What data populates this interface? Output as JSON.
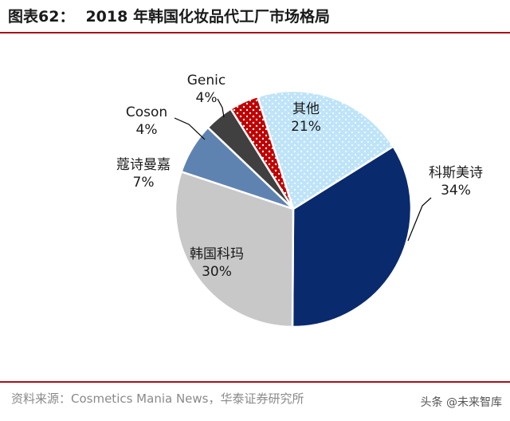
{
  "header": {
    "figure_number": "图表62：",
    "title": "2018 年韩国化妆品代工厂市场格局"
  },
  "footer": {
    "source": "资料来源：Cosmetics Mania News，华泰证券研究所",
    "watermark": "头条 @未来智库"
  },
  "colors": {
    "accent": "#a8101a",
    "cosmax": "#0a2a6e",
    "kolmar": "#c8c8c8",
    "cosmecca": "#5f83b1",
    "coson": "#404040",
    "genic": "#c00000",
    "others": "#bfe4f8"
  },
  "chart_data": {
    "type": "pie",
    "title": "2018 年韩国化妆品代工厂市场格局",
    "unit": "%",
    "start_angle_deg": 58,
    "direction": "clockwise",
    "slices": [
      {
        "name": "科斯美诗",
        "value": 34,
        "label": "34%",
        "color": "#0a2a6e",
        "pattern": "solid"
      },
      {
        "name": "韩国科玛",
        "value": 30,
        "label": "30%",
        "color": "#c8c8c8",
        "pattern": "solid"
      },
      {
        "name": "蔻诗曼嘉",
        "value": 7,
        "label": "7%",
        "color": "#5f83b1",
        "pattern": "solid"
      },
      {
        "name": "Coson",
        "value": 4,
        "label": "4%",
        "color": "#404040",
        "pattern": "solid"
      },
      {
        "name": "Genic",
        "value": 4,
        "label": "4%",
        "color": "#c00000",
        "pattern": "dots"
      },
      {
        "name": "其他",
        "value": 21,
        "label": "21%",
        "color": "#bfe4f8",
        "pattern": "dots"
      }
    ]
  }
}
